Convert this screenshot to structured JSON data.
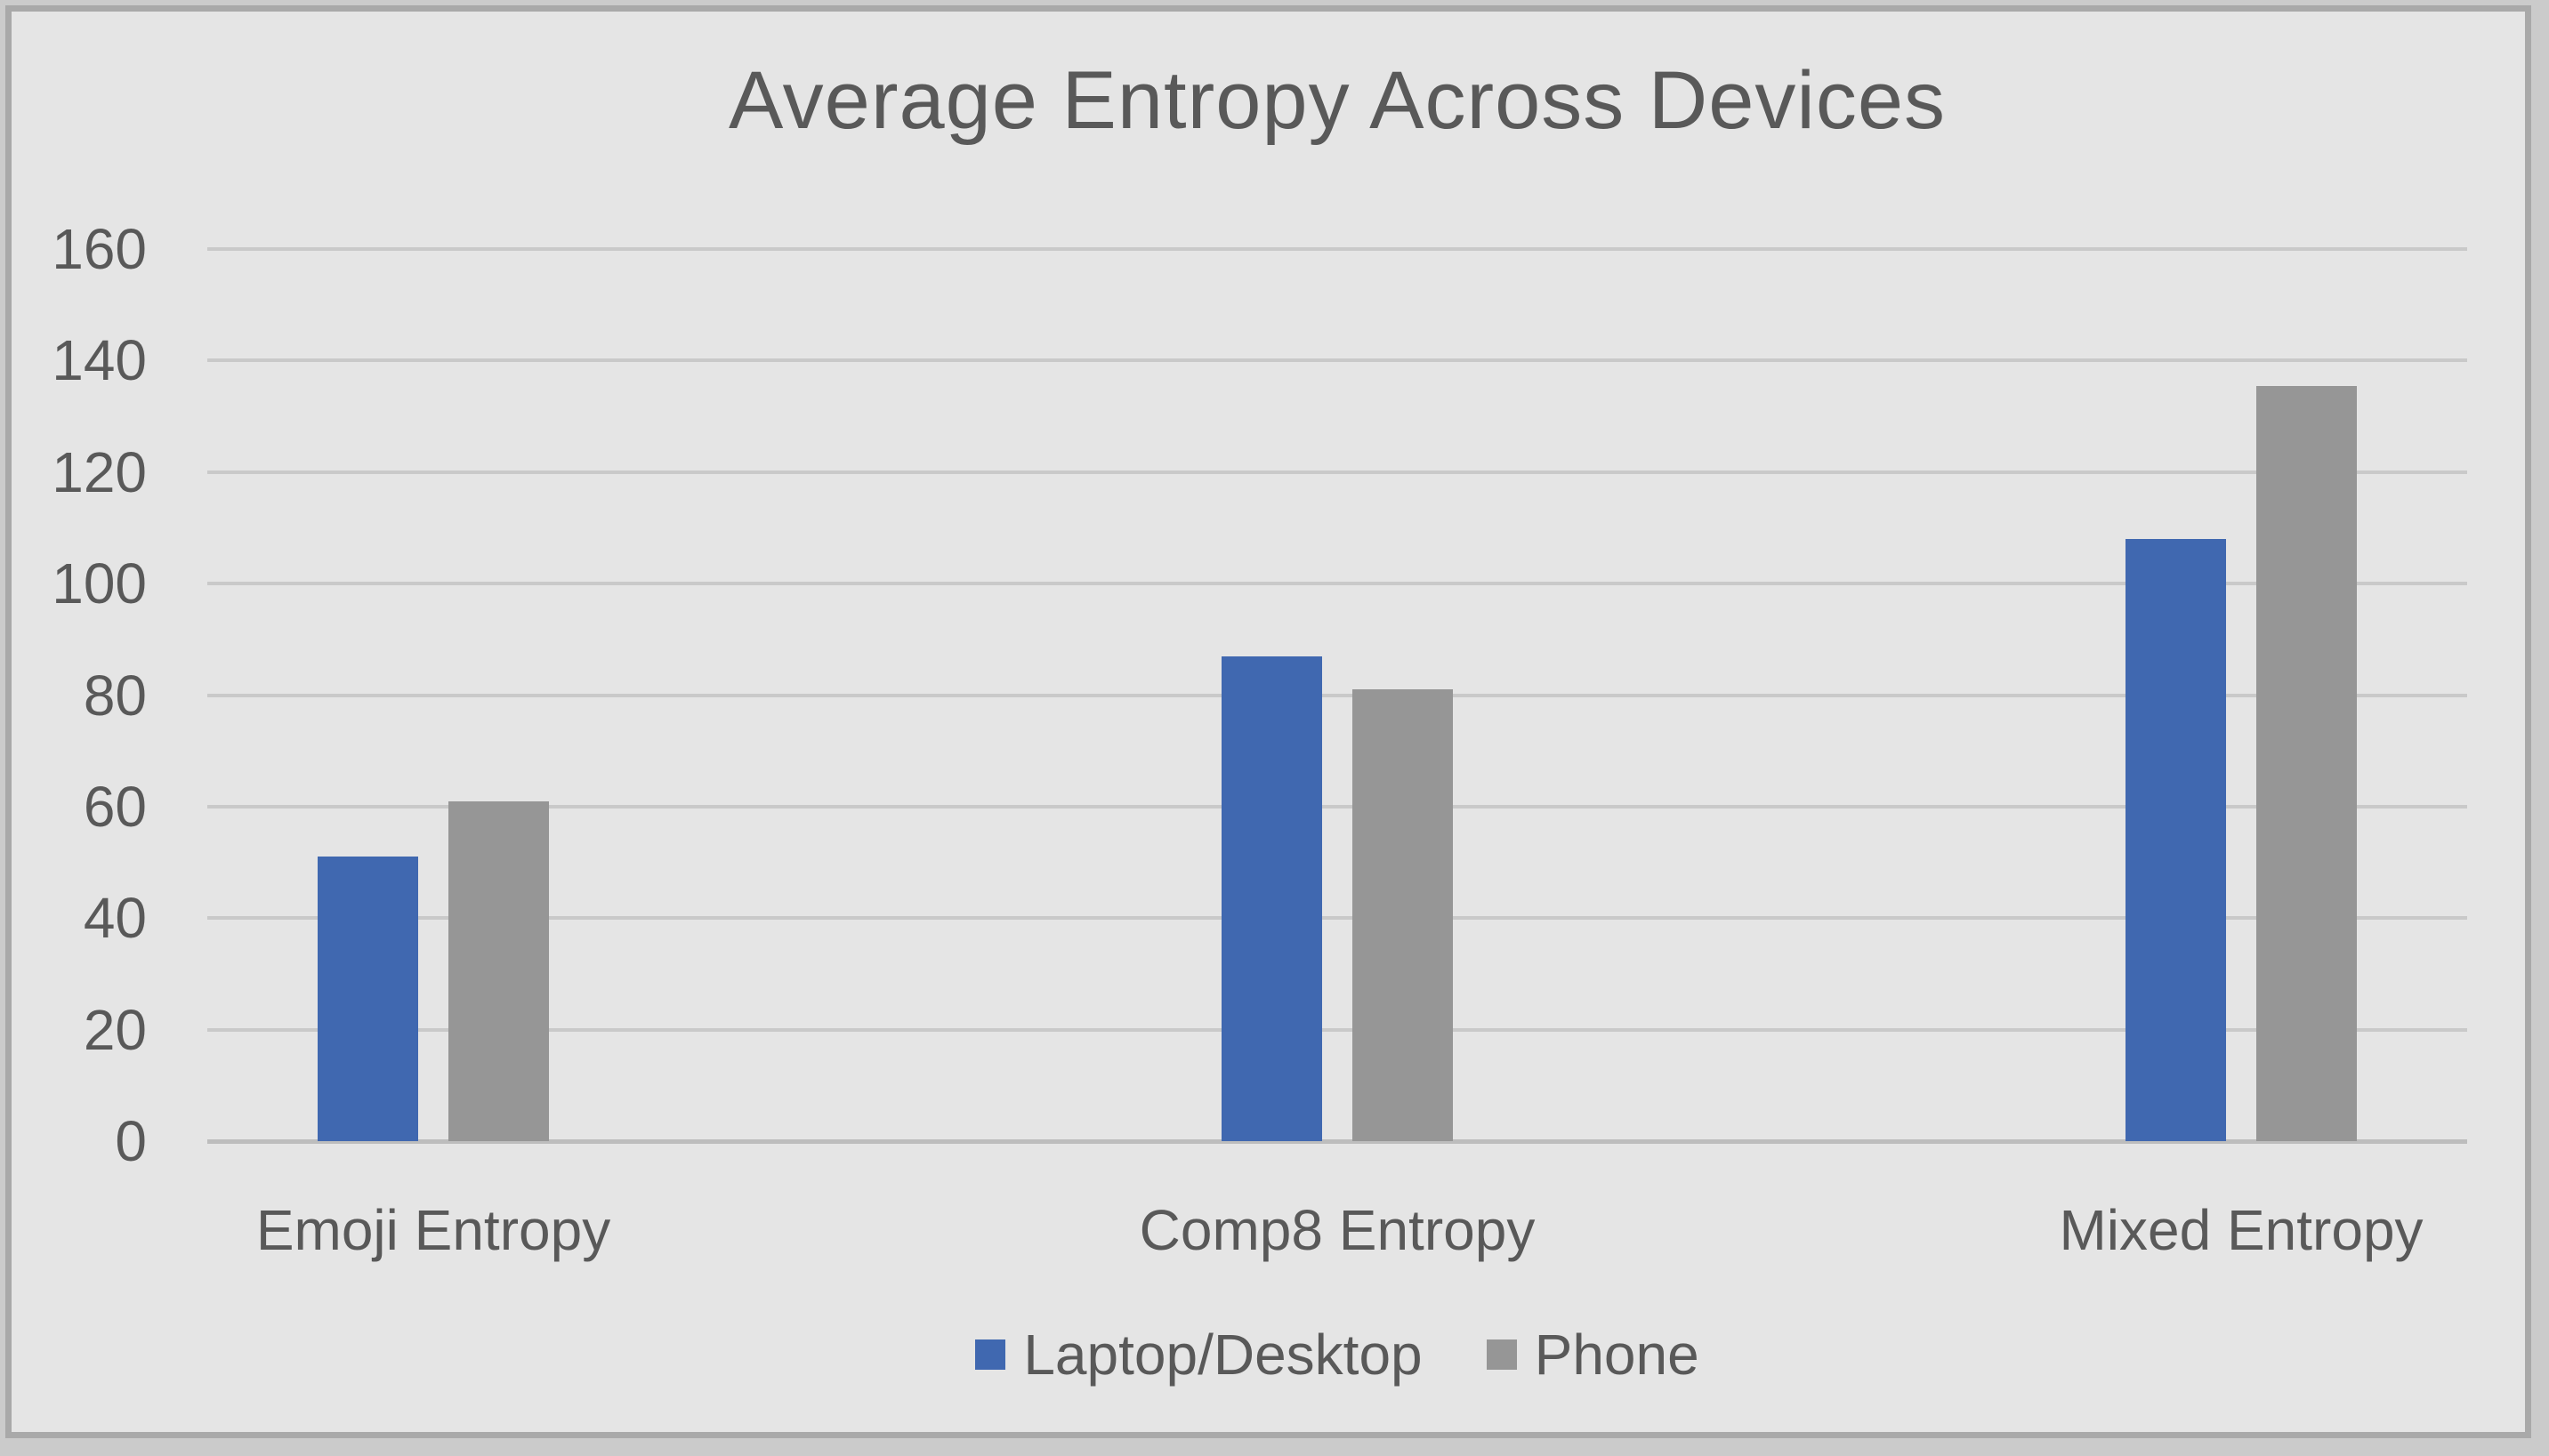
{
  "chart_data": {
    "type": "bar",
    "title": "Average Entropy Across Devices",
    "categories": [
      "Emoji Entropy",
      "Comp8 Entropy",
      "Mixed Entropy"
    ],
    "series": [
      {
        "name": "Laptop/Desktop",
        "color": "#4068b0",
        "values": [
          51,
          87,
          108
        ]
      },
      {
        "name": "Phone",
        "color": "#969696",
        "values": [
          61,
          81,
          135.5
        ]
      }
    ],
    "xlabel": "",
    "ylabel": "",
    "ylim": [
      0,
      160
    ],
    "yticks": [
      0,
      20,
      40,
      60,
      80,
      100,
      120,
      140,
      160
    ],
    "grid": "horizontal",
    "legend_position": "bottom"
  },
  "colors": {
    "background": "#e5e5e5",
    "outer_background": "#cbcbcb",
    "frame_border": "#a9a9a9",
    "gridline": "#c9c9c9",
    "axis_line": "#bdbdbd",
    "text": "#595959"
  }
}
